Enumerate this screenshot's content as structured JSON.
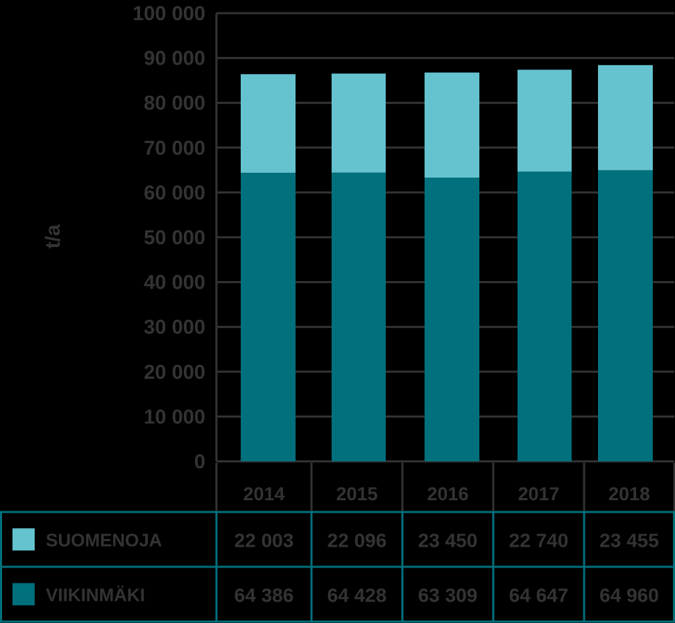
{
  "chart_data": {
    "type": "bar",
    "stacked": true,
    "categories": [
      "2014",
      "2015",
      "2016",
      "2017",
      "2018"
    ],
    "series": [
      {
        "name": "VIIKINMÄKI",
        "color": "#00707d",
        "values": [
          64386,
          64428,
          63309,
          64647,
          64960
        ],
        "labels": [
          "64 386",
          "64 428",
          "63 309",
          "64 647",
          "64 960"
        ]
      },
      {
        "name": "SUOMENOJA",
        "color": "#64c3cf",
        "values": [
          22003,
          22096,
          23450,
          22740,
          23455
        ],
        "labels": [
          "22 003",
          "22 096",
          "23 450",
          "22 740",
          "23 455"
        ]
      }
    ],
    "ylabel": "t/a",
    "ylim": [
      0,
      100000
    ],
    "ytick_labels": [
      "0",
      "10 000",
      "20 000",
      "30 000",
      "40 000",
      "50 000",
      "60 000",
      "70 000",
      "80 000",
      "90 000",
      "100 000"
    ],
    "grid": true,
    "legend": "data table below chart",
    "table_rows": [
      "SUOMENOJA",
      "VIIKINMÄKI"
    ]
  },
  "colors": {
    "background": "#000000",
    "text": "#333333",
    "grid": "#333333",
    "table_border": "#00707d"
  }
}
